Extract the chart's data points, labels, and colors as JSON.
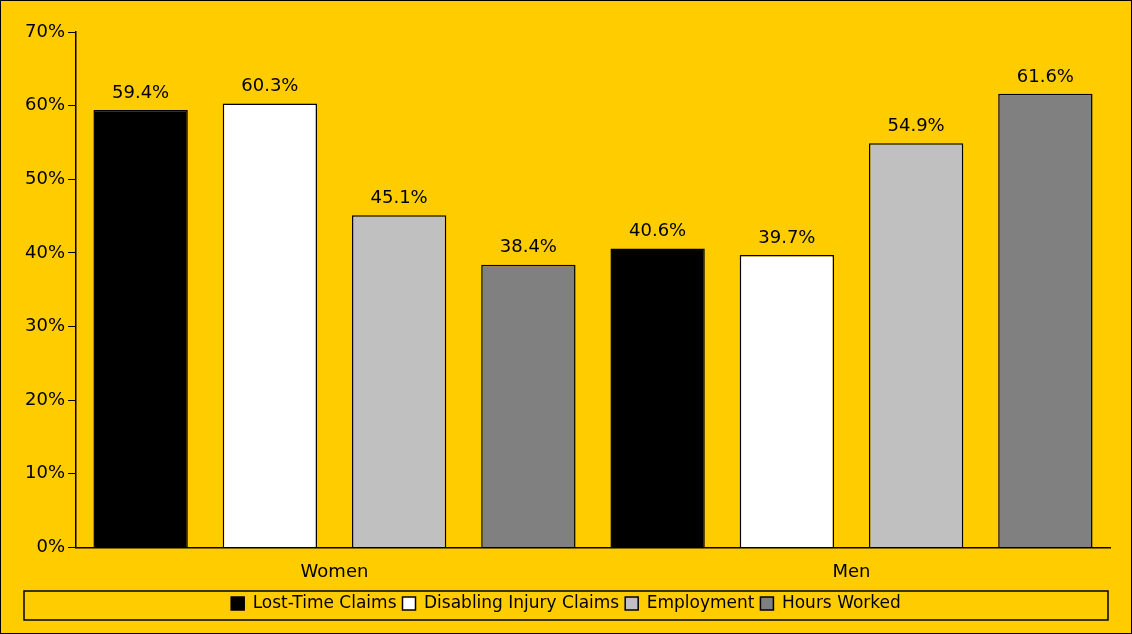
{
  "chart_data": {
    "type": "bar",
    "categories": [
      "Women",
      "Men"
    ],
    "series": [
      {
        "name": "Lost-Time Claims",
        "color": "#000000",
        "values": [
          59.4,
          40.6
        ],
        "value_labels": [
          "59.4%",
          "40.6%"
        ]
      },
      {
        "name": "Disabling Injury Claims",
        "color": "#ffffff",
        "values": [
          60.3,
          39.7
        ],
        "value_labels": [
          "60.3%",
          "39.7%"
        ]
      },
      {
        "name": "Employment",
        "color": "#c0c0c0",
        "values": [
          45.1,
          54.9
        ],
        "value_labels": [
          "45.1%",
          "54.9%"
        ]
      },
      {
        "name": "Hours Worked",
        "color": "#808080",
        "values": [
          38.4,
          61.6
        ],
        "value_labels": [
          "38.4%",
          "61.6%"
        ]
      }
    ],
    "ylim": [
      0,
      70
    ],
    "yticks": [
      {
        "value": 0,
        "label": "0%"
      },
      {
        "value": 10,
        "label": "10%"
      },
      {
        "value": 20,
        "label": "20%"
      },
      {
        "value": 30,
        "label": "30%"
      },
      {
        "value": 40,
        "label": "40%"
      },
      {
        "value": 50,
        "label": "50%"
      },
      {
        "value": 60,
        "label": "60%"
      },
      {
        "value": 70,
        "label": "70%"
      }
    ],
    "grid": false,
    "legend": "bottom"
  }
}
